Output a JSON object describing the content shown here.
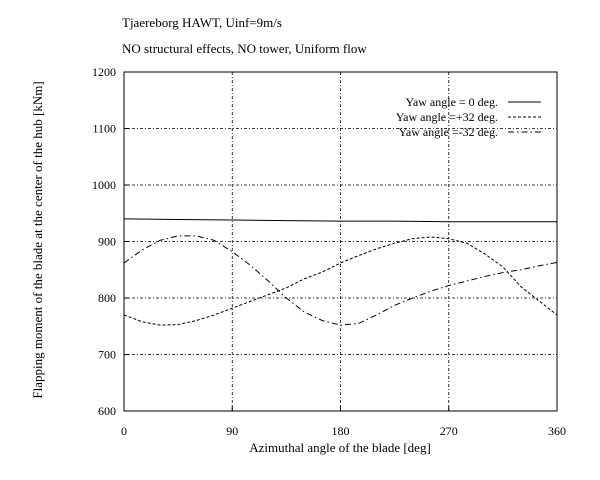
{
  "chart_data": {
    "type": "line",
    "title": "Tjaereborg HAWT, Uinf=9m/s",
    "subtitle": "NO structural effects, NO tower, Uniform flow",
    "xlabel": "Azimuthal angle of the blade [deg]",
    "ylabel": "Flapping moment of the blade at the center of the hub [kNm]",
    "xlim": [
      0,
      360
    ],
    "ylim": [
      600,
      1200
    ],
    "xticks": [
      "0",
      "90",
      "180",
      "270",
      "360"
    ],
    "yticks": [
      "600",
      "700",
      "800",
      "900",
      "1000",
      "1100",
      "1200"
    ],
    "grid": true,
    "legend_position": "top-right",
    "series": [
      {
        "name": "Yaw angle =  0 deg.",
        "style": "solid",
        "x": [
          0,
          45,
          90,
          135,
          180,
          225,
          270,
          315,
          360
        ],
        "y": [
          940,
          939,
          938,
          937,
          936,
          936,
          935,
          935,
          935
        ]
      },
      {
        "name": "Yaw angle =+32 deg.",
        "style": "dashed",
        "x": [
          0,
          15,
          30,
          45,
          60,
          75,
          90,
          105,
          120,
          135,
          150,
          165,
          180,
          195,
          210,
          225,
          240,
          255,
          270,
          285,
          300,
          315,
          330,
          345,
          360
        ],
        "y": [
          770,
          758,
          752,
          753,
          760,
          770,
          782,
          794,
          806,
          818,
          834,
          846,
          862,
          875,
          887,
          897,
          905,
          908,
          905,
          897,
          878,
          855,
          820,
          795,
          770
        ]
      },
      {
        "name": "Yaw angle =-32 deg.",
        "style": "dashdot",
        "x": [
          0,
          15,
          30,
          45,
          60,
          75,
          90,
          105,
          120,
          135,
          150,
          165,
          180,
          195,
          210,
          225,
          240,
          255,
          270,
          285,
          300,
          315,
          330,
          345,
          360
        ],
        "y": [
          862,
          885,
          902,
          910,
          910,
          902,
          882,
          858,
          830,
          800,
          775,
          760,
          752,
          755,
          770,
          787,
          800,
          812,
          822,
          830,
          838,
          845,
          850,
          857,
          863
        ]
      }
    ]
  }
}
